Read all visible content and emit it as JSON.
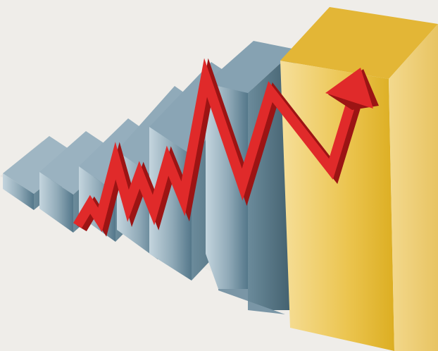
{
  "colors": {
    "background": "#efede9",
    "bar_front_light": "#b8cbd6",
    "bar_front_dark": "#5d8090",
    "bar_top": "#8ea8b6",
    "bar_side": "#4f6d7c",
    "gold_front_light": "#f4d98a",
    "gold_front_dark": "#e2b228",
    "gold_top": "#e6b83a",
    "gold_side": "#f0d488",
    "arrow_front": "#e02a2a",
    "arrow_side": "#9c1414"
  },
  "icons": {
    "arrow": "trend-up-arrow-icon"
  }
}
